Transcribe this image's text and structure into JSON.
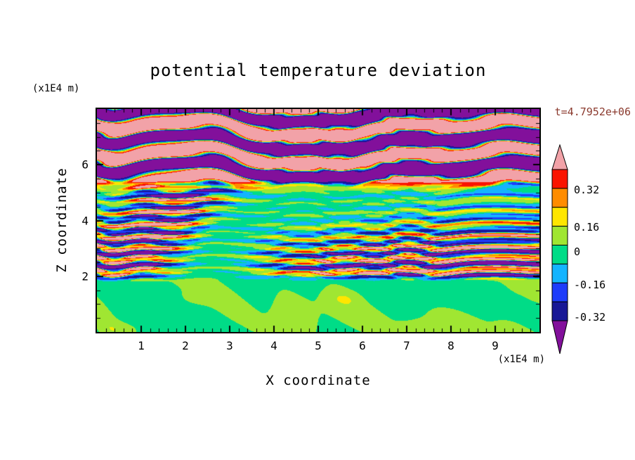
{
  "title": "potential temperature deviation",
  "annotations": {
    "timestamp": "t=4.7952e+06",
    "z_unit": "(x1E4 m)",
    "x_unit": "(x1E4 m)"
  },
  "axes": {
    "x": {
      "label": "X coordinate",
      "min": 0,
      "max": 10,
      "major_ticks": [
        1,
        2,
        3,
        4,
        5,
        6,
        7,
        8,
        9
      ],
      "minor_step": 0.2
    },
    "z": {
      "label": "Z coordinate",
      "min": 0,
      "max": 8,
      "major_ticks": [
        2,
        4,
        6
      ],
      "minor_step": 0.5
    }
  },
  "chart_data": {
    "type": "heatmap",
    "subtype": "filled_contour",
    "title": "potential temperature deviation",
    "xlabel": "X coordinate",
    "ylabel": "Z coordinate",
    "x_unit": "(x1E4 m)",
    "z_unit": "(x1E4 m)",
    "time_annotation": "t=4.7952e+06",
    "xlim": [
      0,
      10
    ],
    "ylim": [
      0,
      8
    ],
    "grid": false,
    "legend_position": "right-colorbar",
    "colorbar": {
      "tick_labels": [
        {
          "text": "0.32",
          "pos": 0.135
        },
        {
          "text": "0.16",
          "pos": 0.38
        },
        {
          "text": "0",
          "pos": 0.545
        },
        {
          "text": "-0.16",
          "pos": 0.765
        },
        {
          "text": "-0.32",
          "pos": 0.975
        }
      ],
      "above_color": "#F2A2A8",
      "below_color": "#82109B",
      "band_colors": [
        "#FA1400",
        "#FF8C00",
        "#FFE600",
        "#A0E632",
        "#00DC87",
        "#14B4FF",
        "#1E3CFA",
        "#181896"
      ],
      "thresholds": [
        0.4,
        0.32,
        0.24,
        0.16,
        0.06,
        -0.06,
        -0.16,
        -0.24,
        -0.4
      ]
    },
    "field_model": {
      "description": "Stratified-turbulence temperature deviation field: near-zero (green) deviations below z~2, fine-scale alternating warm/cold layers (red/orange vs blue/navy stripes) for 2<z<5, and large-amplitude wavy bands saturating the scale (pink >0.4, purple <-0.4) above z~5.",
      "surface": {
        "z_top": 1.9,
        "base": 0.04,
        "amp": 0.06
      },
      "interior": {
        "z_from": 1.9,
        "z_to": 5.25,
        "amp": 0.42,
        "wavelengths": [
          0.42,
          0.23
        ]
      },
      "upper": {
        "z_from": 5.25,
        "amp": 0.58,
        "wavelength": 1.02
      },
      "blend": {
        "surface_to_interior": [
          1.75,
          2.15
        ],
        "interior_to_upper": [
          5.0,
          5.55
        ]
      }
    }
  }
}
